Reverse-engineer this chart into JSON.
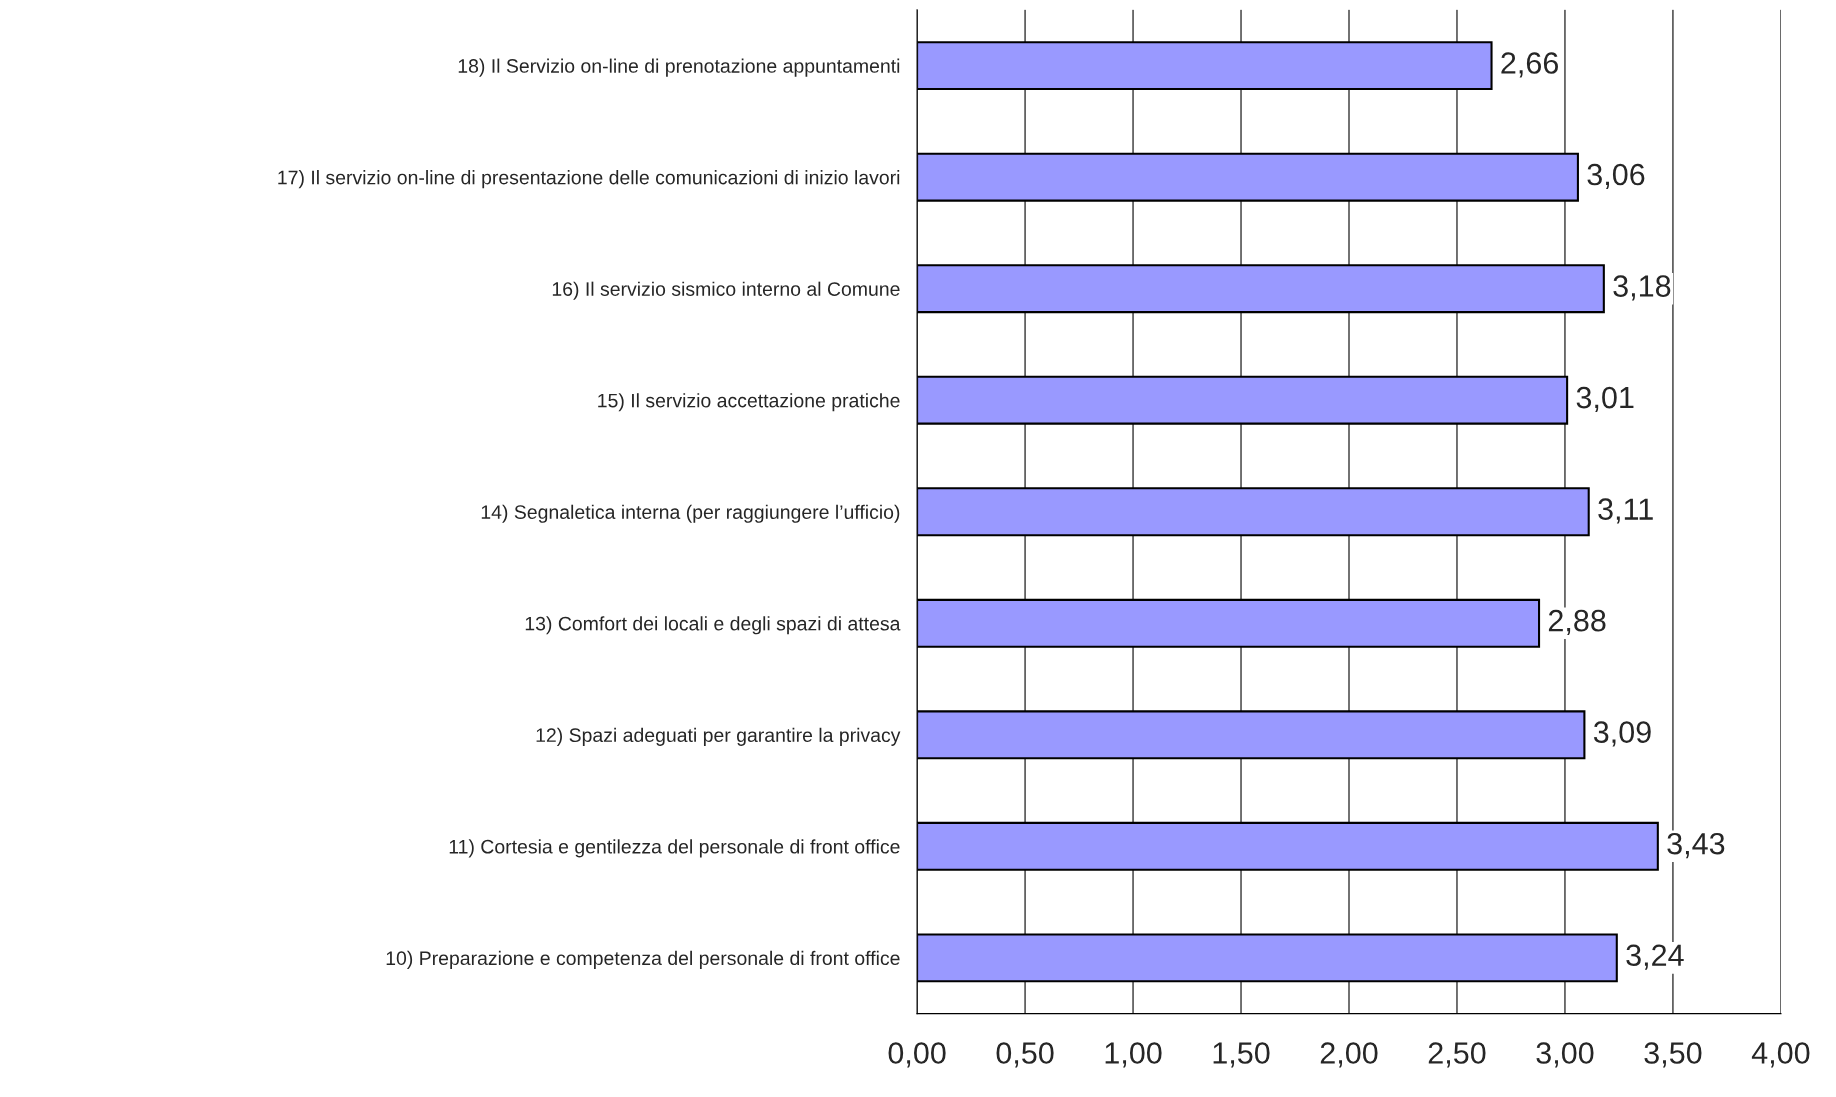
{
  "chart_data": {
    "type": "bar",
    "orientation": "horizontal",
    "categories": [
      "18) Il Servizio on-line di prenotazione appuntamenti",
      "17) Il servizio on-line di presentazione delle comunicazioni di inizio lavori",
      "16) Il servizio sismico interno al Comune",
      "15) Il servizio accettazione pratiche",
      "14) Segnaletica interna (per raggiungere l’ufficio)",
      "13) Comfort dei locali e degli spazi di attesa",
      "12) Spazi adeguati per garantire la privacy",
      "11) Cortesia e gentilezza del personale di front office",
      "10) Preparazione e competenza del personale di front office"
    ],
    "values": [
      2.66,
      3.06,
      3.18,
      3.01,
      3.11,
      2.88,
      3.09,
      3.43,
      3.24
    ],
    "value_labels": [
      "2,66",
      "3,06",
      "3,18",
      "3,01",
      "3,11",
      "2,88",
      "3,09",
      "3,43",
      "3,24"
    ],
    "color": "#9999ff",
    "xlim": [
      0,
      4
    ],
    "xticks": [
      {
        "value": 0,
        "label": "0,00"
      },
      {
        "value": 0.5,
        "label": "0,50"
      },
      {
        "value": 1,
        "label": "1,00"
      },
      {
        "value": 1.5,
        "label": "1,50"
      },
      {
        "value": 2,
        "label": "2,00"
      },
      {
        "value": 2.5,
        "label": "2,50"
      },
      {
        "value": 3,
        "label": "3,00"
      },
      {
        "value": 3.5,
        "label": "3,50"
      },
      {
        "value": 4,
        "label": "4,00"
      }
    ],
    "grid": "x",
    "legend": false
  }
}
